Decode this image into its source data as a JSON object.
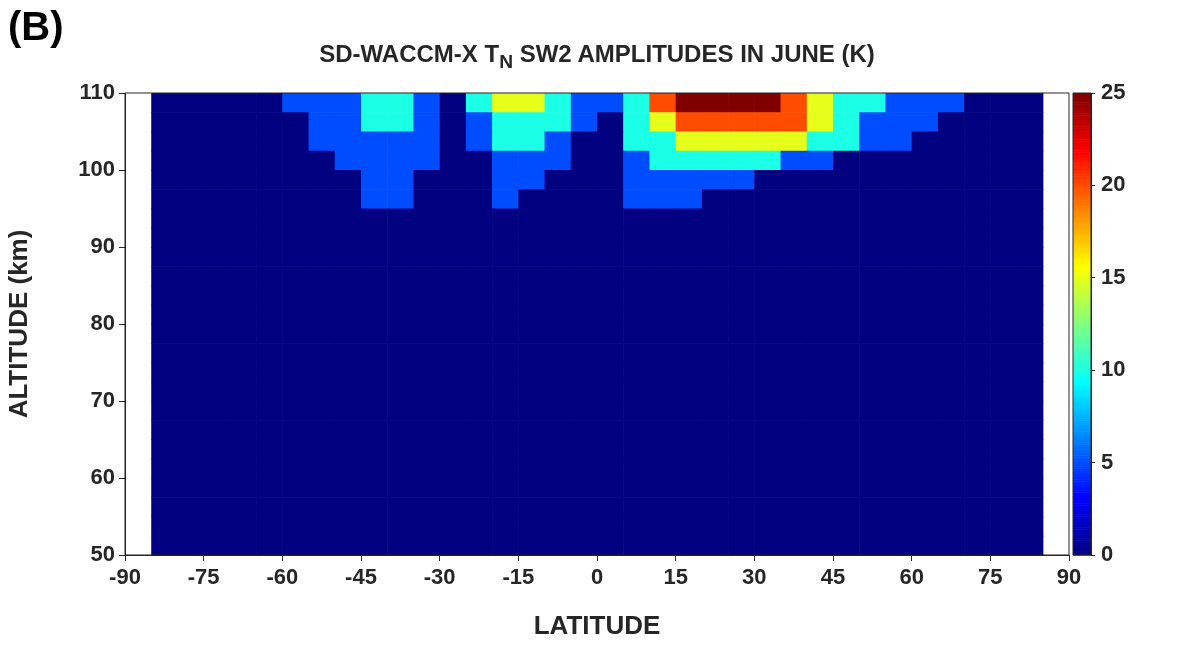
{
  "chart_data": {
    "type": "heatmap",
    "title": "SD-WACCM-X T$_{N}$ SW2 AMPLITUDES IN JUNE (K)",
    "xlabel": "LATITUDE",
    "ylabel": "ALTITUDE (km)",
    "annotations": [
      "(B)"
    ],
    "x": [
      -82.5,
      -77.5,
      -72.5,
      -67.5,
      -62.5,
      -57.5,
      -52.5,
      -47.5,
      -42.5,
      -37.5,
      -32.5,
      -27.5,
      -22.5,
      -17.5,
      -12.5,
      -7.5,
      -2.5,
      2.5,
      7.5,
      12.5,
      17.5,
      22.5,
      27.5,
      32.5,
      37.5,
      42.5,
      47.5,
      52.5,
      57.5,
      62.5,
      67.5,
      72.5,
      77.5,
      82.5
    ],
    "y": [
      108.75,
      106.25,
      103.75,
      101.25,
      98.75,
      96.25,
      93.75,
      91.25,
      88.75,
      86.25,
      83.75,
      81.25,
      78.75,
      76.25,
      73.75,
      71.25,
      68.75,
      66.25,
      63.75,
      61.25,
      58.75,
      56.25,
      53.75,
      51.25
    ],
    "cells": [
      [
        0,
        0,
        0,
        0,
        0,
        5,
        5,
        5,
        10,
        10,
        5,
        0,
        10,
        15,
        15,
        10,
        5,
        5,
        10,
        20,
        25,
        25,
        25,
        25,
        20,
        15,
        10,
        10,
        5,
        5,
        5,
        0,
        0,
        0
      ],
      [
        0,
        0,
        0,
        0,
        0,
        0,
        5,
        5,
        10,
        10,
        5,
        0,
        5,
        10,
        10,
        10,
        5,
        0,
        10,
        15,
        20,
        20,
        20,
        20,
        20,
        15,
        10,
        5,
        5,
        5,
        0,
        0,
        0,
        0
      ],
      [
        0,
        0,
        0,
        0,
        0,
        0,
        5,
        5,
        5,
        5,
        5,
        0,
        5,
        10,
        10,
        5,
        0,
        0,
        10,
        10,
        15,
        15,
        15,
        15,
        15,
        10,
        10,
        5,
        5,
        0,
        0,
        0,
        0,
        0
      ],
      [
        0,
        0,
        0,
        0,
        0,
        0,
        0,
        5,
        5,
        5,
        5,
        0,
        0,
        5,
        5,
        5,
        0,
        0,
        5,
        10,
        10,
        10,
        10,
        10,
        5,
        5,
        0,
        0,
        0,
        0,
        0,
        0,
        0,
        0
      ],
      [
        0,
        0,
        0,
        0,
        0,
        0,
        0,
        0,
        5,
        5,
        0,
        0,
        0,
        5,
        5,
        0,
        0,
        0,
        5,
        5,
        5,
        5,
        5,
        0,
        0,
        0,
        0,
        0,
        0,
        0,
        0,
        0,
        0,
        0
      ],
      [
        0,
        0,
        0,
        0,
        0,
        0,
        0,
        0,
        5,
        5,
        0,
        0,
        0,
        5,
        0,
        0,
        0,
        0,
        5,
        5,
        5,
        0,
        0,
        0,
        0,
        0,
        0,
        0,
        0,
        0,
        0,
        0,
        0,
        0
      ],
      [
        0,
        0,
        0,
        0,
        0,
        0,
        0,
        0,
        0,
        0,
        0,
        0,
        0,
        0,
        0,
        0,
        0,
        0,
        0,
        0,
        0,
        0,
        0,
        0,
        0,
        0,
        0,
        0,
        0,
        0,
        0,
        0,
        0,
        0
      ],
      [
        0,
        0,
        0,
        0,
        0,
        0,
        0,
        0,
        0,
        0,
        0,
        0,
        0,
        0,
        0,
        0,
        0,
        0,
        0,
        0,
        0,
        0,
        0,
        0,
        0,
        0,
        0,
        0,
        0,
        0,
        0,
        0,
        0,
        0
      ],
      [
        0,
        0,
        0,
        0,
        0,
        0,
        0,
        0,
        0,
        0,
        0,
        0,
        0,
        0,
        0,
        0,
        0,
        0,
        0,
        0,
        0,
        0,
        0,
        0,
        0,
        0,
        0,
        0,
        0,
        0,
        0,
        0,
        0,
        0
      ],
      [
        0,
        0,
        0,
        0,
        0,
        0,
        0,
        0,
        0,
        0,
        0,
        0,
        0,
        0,
        0,
        0,
        0,
        0,
        0,
        0,
        0,
        0,
        0,
        0,
        0,
        0,
        0,
        0,
        0,
        0,
        0,
        0,
        0,
        0
      ],
      [
        0,
        0,
        0,
        0,
        0,
        0,
        0,
        0,
        0,
        0,
        0,
        0,
        0,
        0,
        0,
        0,
        0,
        0,
        0,
        0,
        0,
        0,
        0,
        0,
        0,
        0,
        0,
        0,
        0,
        0,
        0,
        0,
        0,
        0
      ],
      [
        0,
        0,
        0,
        0,
        0,
        0,
        0,
        0,
        0,
        0,
        0,
        0,
        0,
        0,
        0,
        0,
        0,
        0,
        0,
        0,
        0,
        0,
        0,
        0,
        0,
        0,
        0,
        0,
        0,
        0,
        0,
        0,
        0,
        0
      ],
      [
        0,
        0,
        0,
        0,
        0,
        0,
        0,
        0,
        0,
        0,
        0,
        0,
        0,
        0,
        0,
        0,
        0,
        0,
        0,
        0,
        0,
        0,
        0,
        0,
        0,
        0,
        0,
        0,
        0,
        0,
        0,
        0,
        0,
        0
      ],
      [
        0,
        0,
        0,
        0,
        0,
        0,
        0,
        0,
        0,
        0,
        0,
        0,
        0,
        0,
        0,
        0,
        0,
        0,
        0,
        0,
        0,
        0,
        0,
        0,
        0,
        0,
        0,
        0,
        0,
        0,
        0,
        0,
        0,
        0
      ],
      [
        0,
        0,
        0,
        0,
        0,
        0,
        0,
        0,
        0,
        0,
        0,
        0,
        0,
        0,
        0,
        0,
        0,
        0,
        0,
        0,
        0,
        0,
        0,
        0,
        0,
        0,
        0,
        0,
        0,
        0,
        0,
        0,
        0,
        0
      ],
      [
        0,
        0,
        0,
        0,
        0,
        0,
        0,
        0,
        0,
        0,
        0,
        0,
        0,
        0,
        0,
        0,
        0,
        0,
        0,
        0,
        0,
        0,
        0,
        0,
        0,
        0,
        0,
        0,
        0,
        0,
        0,
        0,
        0,
        0
      ],
      [
        0,
        0,
        0,
        0,
        0,
        0,
        0,
        0,
        0,
        0,
        0,
        0,
        0,
        0,
        0,
        0,
        0,
        0,
        0,
        0,
        0,
        0,
        0,
        0,
        0,
        0,
        0,
        0,
        0,
        0,
        0,
        0,
        0,
        0
      ],
      [
        0,
        0,
        0,
        0,
        0,
        0,
        0,
        0,
        0,
        0,
        0,
        0,
        0,
        0,
        0,
        0,
        0,
        0,
        0,
        0,
        0,
        0,
        0,
        0,
        0,
        0,
        0,
        0,
        0,
        0,
        0,
        0,
        0,
        0
      ],
      [
        0,
        0,
        0,
        0,
        0,
        0,
        0,
        0,
        0,
        0,
        0,
        0,
        0,
        0,
        0,
        0,
        0,
        0,
        0,
        0,
        0,
        0,
        0,
        0,
        0,
        0,
        0,
        0,
        0,
        0,
        0,
        0,
        0,
        0
      ],
      [
        0,
        0,
        0,
        0,
        0,
        0,
        0,
        0,
        0,
        0,
        0,
        0,
        0,
        0,
        0,
        0,
        0,
        0,
        0,
        0,
        0,
        0,
        0,
        0,
        0,
        0,
        0,
        0,
        0,
        0,
        0,
        0,
        0,
        0
      ],
      [
        0,
        0,
        0,
        0,
        0,
        0,
        0,
        0,
        0,
        0,
        0,
        0,
        0,
        0,
        0,
        0,
        0,
        0,
        0,
        0,
        0,
        0,
        0,
        0,
        0,
        0,
        0,
        0,
        0,
        0,
        0,
        0,
        0,
        0
      ],
      [
        0,
        0,
        0,
        0,
        0,
        0,
        0,
        0,
        0,
        0,
        0,
        0,
        0,
        0,
        0,
        0,
        0,
        0,
        0,
        0,
        0,
        0,
        0,
        0,
        0,
        0,
        0,
        0,
        0,
        0,
        0,
        0,
        0,
        0
      ],
      [
        0,
        0,
        0,
        0,
        0,
        0,
        0,
        0,
        0,
        0,
        0,
        0,
        0,
        0,
        0,
        0,
        0,
        0,
        0,
        0,
        0,
        0,
        0,
        0,
        0,
        0,
        0,
        0,
        0,
        0,
        0,
        0,
        0,
        0
      ],
      [
        0,
        0,
        0,
        0,
        0,
        0,
        0,
        0,
        0,
        0,
        0,
        0,
        0,
        0,
        0,
        0,
        0,
        0,
        0,
        0,
        0,
        0,
        0,
        0,
        0,
        0,
        0,
        0,
        0,
        0,
        0,
        0,
        0,
        0
      ]
    ],
    "xlim": [
      -90,
      90
    ],
    "xticks": [
      -90,
      -75,
      -60,
      -45,
      -30,
      -15,
      0,
      15,
      30,
      45,
      60,
      75,
      90
    ],
    "ylim": [
      50,
      110
    ],
    "yticks": [
      50,
      60,
      70,
      80,
      90,
      100,
      110
    ],
    "clim": [
      0,
      25
    ],
    "cticks": [
      0,
      5,
      10,
      15,
      20,
      25
    ]
  }
}
